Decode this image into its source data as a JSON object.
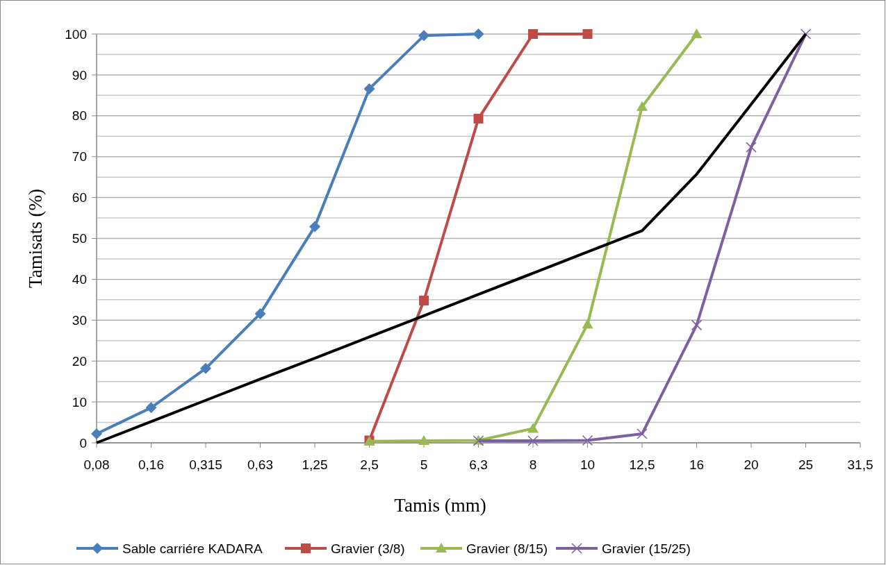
{
  "chart_data": {
    "type": "line",
    "xlabel": "Tamis (mm)",
    "ylabel": "Tamisats  (%)",
    "categories": [
      "0,08",
      "0,16",
      "0,315",
      "0,63",
      "1,25",
      "2,5",
      "5",
      "6,3",
      "8",
      "10",
      "12,5",
      "16",
      "20",
      "25",
      "31,5"
    ],
    "ylim": [
      0,
      100
    ],
    "yticks": [
      0,
      10,
      20,
      30,
      40,
      50,
      60,
      70,
      80,
      90,
      100
    ],
    "grid": "y",
    "legend": "bottom",
    "series": [
      {
        "name": "Sable carriére KADARA",
        "color": "#4a7ebb",
        "marker": "diamond",
        "values": [
          2.2,
          8.6,
          18.2,
          31.6,
          52.9,
          86.6,
          99.6,
          100,
          null,
          null,
          null,
          null,
          null,
          null,
          null
        ]
      },
      {
        "name": "Gravier (3/8)",
        "color": "#be4b48",
        "marker": "square",
        "values": [
          null,
          null,
          null,
          null,
          null,
          0.6,
          34.8,
          79.3,
          100,
          100,
          null,
          null,
          null,
          null,
          null
        ]
      },
      {
        "name": "Gravier (8/15)",
        "color": "#98b954",
        "marker": "triangle",
        "values": [
          null,
          null,
          null,
          null,
          null,
          0.4,
          0.5,
          0.6,
          3.5,
          29,
          82.2,
          100,
          null,
          null,
          null
        ]
      },
      {
        "name": "Gravier (15/25)",
        "color": "#7d60a0",
        "marker": "cross",
        "values": [
          null,
          null,
          null,
          null,
          null,
          null,
          null,
          0.5,
          0.5,
          0.6,
          2.2,
          28.8,
          72.3,
          100,
          null
        ]
      },
      {
        "color": "#000000",
        "marker": "none",
        "values": [
          0,
          5.2,
          10.4,
          15.6,
          20.7,
          25.9,
          31.1,
          36.3,
          41.5,
          46.7,
          51.9,
          65.7,
          82.8,
          100,
          null
        ]
      }
    ]
  }
}
